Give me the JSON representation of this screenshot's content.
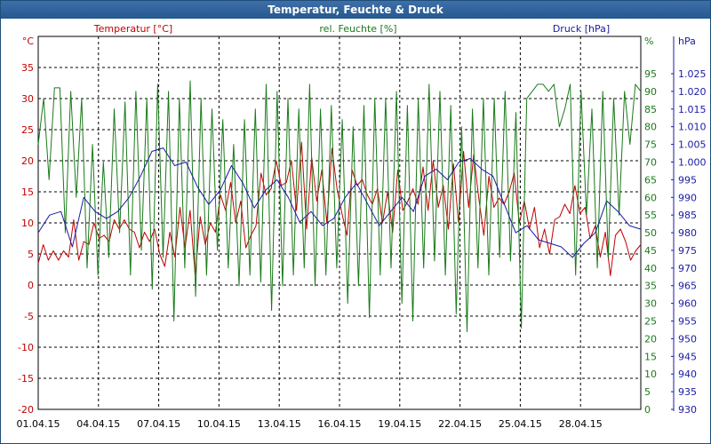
{
  "window": {
    "title": "Temperatur, Feuchte & Druck"
  },
  "colors": {
    "temperature": "#c00000",
    "humidity": "#1a7a1a",
    "pressure": "#1a1aa6",
    "grid": "#000000",
    "titlebar": "#2b5c93"
  },
  "chart_data": {
    "type": "line",
    "title": "Temperatur, Feuchte & Druck",
    "x_tick_labels": [
      "01.04.15",
      "04.04.15",
      "07.04.15",
      "10.04.15",
      "13.04.15",
      "16.04.15",
      "19.04.15",
      "22.04.15",
      "25.04.15",
      "28.04.15"
    ],
    "x_range": [
      "01.04.15",
      "01.05.15"
    ],
    "grid": true,
    "axes": {
      "left": {
        "unit": "°C",
        "range": [
          -20,
          40
        ],
        "ticks": [
          "35",
          "30",
          "25",
          "20",
          "15",
          "10",
          "5",
          "0",
          "-5",
          "-10",
          "-15",
          "-20"
        ]
      },
      "right1": {
        "unit": "%",
        "range": [
          0,
          95
        ],
        "ticks": [
          "95",
          "90",
          "85",
          "80",
          "75",
          "70",
          "65",
          "60",
          "55",
          "50",
          "45",
          "40",
          "35",
          "30",
          "25",
          "20",
          "15",
          "10",
          "5",
          "0"
        ]
      },
      "right2": {
        "unit": "hPa",
        "range": [
          930,
          1025
        ],
        "ticks": [
          "1.025",
          "1.020",
          "1.015",
          "1.010",
          "1.005",
          "1.000",
          "995",
          "990",
          "985",
          "980",
          "975",
          "970",
          "965",
          "960",
          "955",
          "950",
          "945",
          "940",
          "935",
          "930"
        ]
      }
    },
    "series": [
      {
        "name": "Temperatur [°C]",
        "axis": "left",
        "color": "#c00000",
        "values": [
          3.5,
          6.5,
          4.0,
          5.5,
          4.0,
          5.5,
          4.5,
          10.5,
          4.0,
          7.0,
          6.5,
          10.0,
          7.5,
          8.0,
          7.0,
          10.5,
          9.0,
          10.5,
          9.0,
          8.5,
          6.0,
          8.5,
          7.0,
          9.0,
          5.0,
          3.0,
          8.5,
          4.5,
          12.5,
          6.0,
          12.0,
          1.5,
          11.0,
          6.5,
          10.0,
          8.5,
          14.5,
          12.0,
          16.5,
          10.0,
          13.5,
          6.0,
          8.0,
          9.5,
          18.0,
          14.5,
          15.5,
          20.0,
          16.0,
          16.5,
          20.0,
          12.0,
          23.0,
          9.0,
          20.5,
          13.5,
          18.5,
          10.0,
          22.0,
          15.5,
          11.5,
          8.0,
          18.5,
          16.0,
          17.0,
          14.5,
          13.0,
          15.5,
          10.0,
          15.0,
          8.5,
          18.5,
          12.0,
          13.5,
          15.5,
          13.0,
          19.0,
          12.0,
          20.0,
          12.5,
          16.0,
          9.0,
          19.5,
          10.0,
          21.5,
          12.5,
          21.0,
          14.0,
          8.0,
          17.5,
          12.5,
          14.0,
          13.0,
          15.0,
          18.0,
          10.0,
          13.5,
          9.0,
          12.5,
          6.0,
          9.0,
          5.0,
          10.5,
          11.0,
          13.0,
          11.5,
          16.0,
          11.5,
          12.5,
          7.5,
          9.5,
          4.5,
          8.5,
          1.5,
          8.0,
          9.0,
          7.0,
          4.0,
          5.5,
          6.5
        ],
        "approximate": true
      },
      {
        "name": "rel. Feuchte [%]",
        "axis": "right1",
        "color": "#1a7a1a",
        "values": [
          75,
          88,
          65,
          91,
          91,
          50,
          90,
          60,
          88,
          40,
          75,
          38,
          70,
          43,
          85,
          50,
          87,
          38,
          90,
          45,
          88,
          34,
          92,
          43,
          90,
          25,
          88,
          40,
          93,
          32,
          88,
          38,
          85,
          45,
          82,
          40,
          75,
          35,
          82,
          38,
          85,
          36,
          92,
          28,
          90,
          35,
          88,
          38,
          85,
          40,
          92,
          35,
          85,
          38,
          86,
          40,
          82,
          30,
          80,
          35,
          86,
          26,
          88,
          38,
          88,
          40,
          90,
          30,
          86,
          25,
          88,
          40,
          92,
          42,
          90,
          38,
          86,
          27,
          80,
          22,
          85,
          40,
          88,
          38,
          88,
          43,
          90,
          42,
          84,
          23,
          88,
          90,
          92,
          92,
          90,
          92,
          80,
          85,
          92,
          38,
          90,
          55,
          85,
          40,
          90,
          43,
          88,
          55,
          90,
          75,
          92,
          90
        ],
        "approximate": true
      },
      {
        "name": "Druck [hPa]",
        "axis": "right2",
        "color": "#1a1aa6",
        "values": [
          980,
          985,
          986,
          976,
          990,
          986,
          984,
          986,
          990,
          996,
          1003,
          1004,
          999,
          1000,
          993,
          988,
          992,
          999,
          994,
          987,
          992,
          995,
          990,
          983,
          986,
          982,
          984,
          990,
          994,
          988,
          982,
          986,
          990,
          986,
          996,
          998,
          995,
          1000,
          1001,
          998,
          996,
          988,
          980,
          982,
          978,
          977,
          976,
          973,
          977,
          980,
          989,
          986,
          982,
          981
        ]
      }
    ]
  }
}
